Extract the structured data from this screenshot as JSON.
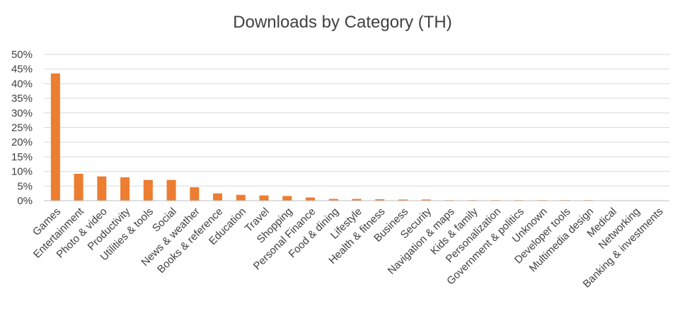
{
  "chart_data": {
    "type": "bar",
    "title": "Downloads by Category (TH)",
    "xlabel": "",
    "ylabel": "",
    "ylim": [
      0,
      0.5
    ],
    "y_ticks": [
      "0%",
      "5%",
      "10%",
      "15%",
      "20%",
      "25%",
      "30%",
      "35%",
      "40%",
      "45%",
      "50%"
    ],
    "grid": true,
    "legend": "none",
    "bar_color": "#ED7D31",
    "categories": [
      "Games",
      "Entertainment",
      "Photo & video",
      "Productivity",
      "Utilities & tools",
      "Social",
      "News & weather",
      "Books & reference",
      "Education",
      "Travel",
      "Shopping",
      "Personal Finance",
      "Food & dining",
      "Lifestyle",
      "Health & fitness",
      "Business",
      "Security",
      "Navigation & maps",
      "Kids & family",
      "Personalization",
      "Government & politics",
      "Unknown",
      "Developer tools",
      "Multimedia design",
      "Medical",
      "Networking",
      "Banking & investments"
    ],
    "values": [
      0.435,
      0.092,
      0.083,
      0.08,
      0.071,
      0.071,
      0.046,
      0.025,
      0.02,
      0.018,
      0.016,
      0.011,
      0.006,
      0.006,
      0.005,
      0.004,
      0.004,
      0.002,
      0.002,
      0.002,
      0.002,
      0.002,
      0.002,
      0.002,
      0.001,
      0.0,
      0.0
    ]
  }
}
